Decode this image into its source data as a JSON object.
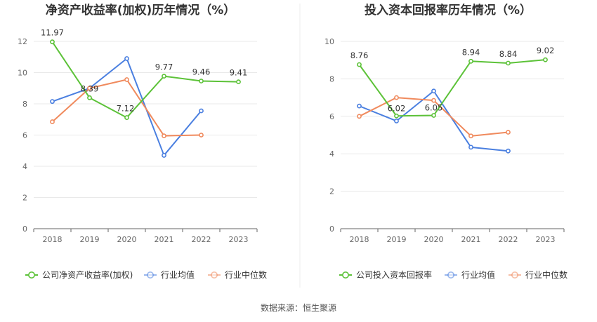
{
  "source_label": "数据来源：恒生聚源",
  "chart_data": [
    {
      "type": "line",
      "title": "净资产收益率(加权)历年情况（%）",
      "categories": [
        "2018",
        "2019",
        "2020",
        "2021",
        "2022",
        "2023"
      ],
      "ylim": [
        0,
        12
      ],
      "yticks": [
        0,
        2,
        4,
        6,
        8,
        10,
        12
      ],
      "grid": true,
      "legend_position": "bottom",
      "series": [
        {
          "name": "公司净资产收益率(加权)",
          "color": "#5cc238",
          "values": [
            11.97,
            8.39,
            7.12,
            9.77,
            9.46,
            9.41
          ],
          "labels": [
            "11.97",
            "8.39",
            "7.12",
            "9.77",
            "9.46",
            "9.41"
          ]
        },
        {
          "name": "行业均值",
          "color": "#4a7fe0",
          "values": [
            8.15,
            9.0,
            10.9,
            4.7,
            7.55,
            null
          ]
        },
        {
          "name": "行业中位数",
          "color": "#f08a5d",
          "values": [
            6.85,
            9.0,
            9.55,
            5.95,
            6.0,
            null
          ]
        }
      ]
    },
    {
      "type": "line",
      "title": "投入资本回报率历年情况（%）",
      "categories": [
        "2018",
        "2019",
        "2020",
        "2021",
        "2022",
        "2023"
      ],
      "ylim": [
        0,
        10
      ],
      "yticks": [
        0,
        2,
        4,
        6,
        8,
        10
      ],
      "grid": true,
      "legend_position": "bottom",
      "series": [
        {
          "name": "公司投入资本回报率",
          "color": "#5cc238",
          "values": [
            8.76,
            6.02,
            6.05,
            8.94,
            8.84,
            9.02
          ],
          "labels": [
            "8.76",
            "6.02",
            "6.05",
            "8.94",
            "8.84",
            "9.02"
          ]
        },
        {
          "name": "行业均值",
          "color": "#4a7fe0",
          "values": [
            6.55,
            5.75,
            7.35,
            4.35,
            4.15,
            null
          ]
        },
        {
          "name": "行业中位数",
          "color": "#f08a5d",
          "values": [
            6.0,
            7.0,
            6.85,
            4.95,
            5.15,
            null
          ]
        }
      ]
    }
  ]
}
